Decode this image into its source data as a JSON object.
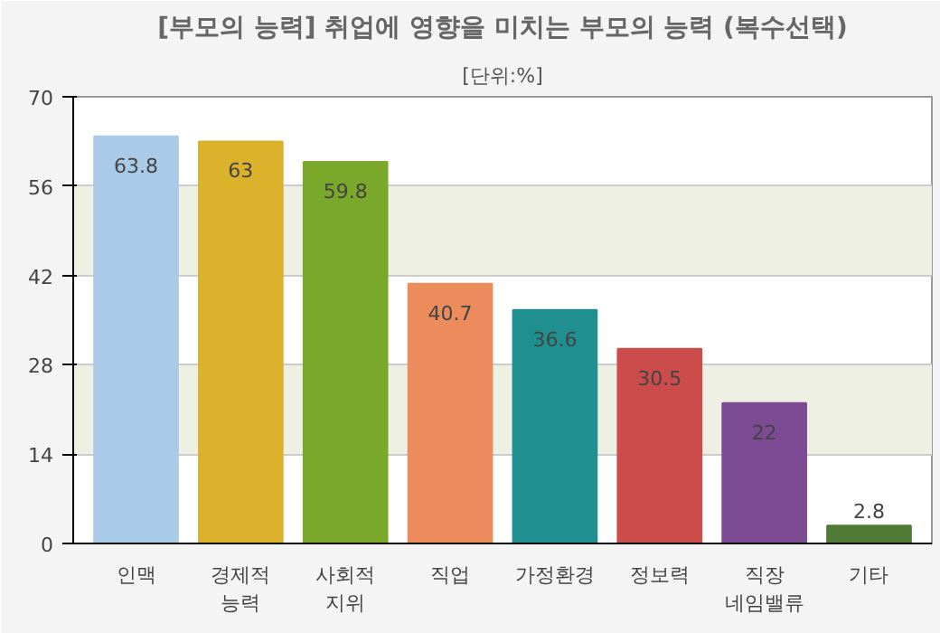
{
  "chart_data": {
    "type": "bar",
    "title": "[부모의 능력] 취업에 영향을 미치는 부모의 능력 (복수선택)",
    "subtitle": "[단위:%]",
    "categories": [
      "인맥",
      "경제적 능력",
      "사회적 지위",
      "직업",
      "가정환경",
      "정보력",
      "직장 네임밸류",
      "기타"
    ],
    "values": [
      63.8,
      63,
      59.8,
      40.7,
      36.6,
      30.5,
      22,
      2.8
    ],
    "colors": [
      "#a9cbe8",
      "#dcb22c",
      "#7aa82a",
      "#ec8c5c",
      "#1f8f8f",
      "#cc4c4c",
      "#7d4a94",
      "#4f7a35"
    ],
    "ylim": [
      0,
      70
    ],
    "yticks": [
      0,
      14,
      28,
      42,
      56,
      70
    ],
    "grid": "y",
    "data_labels": true
  }
}
